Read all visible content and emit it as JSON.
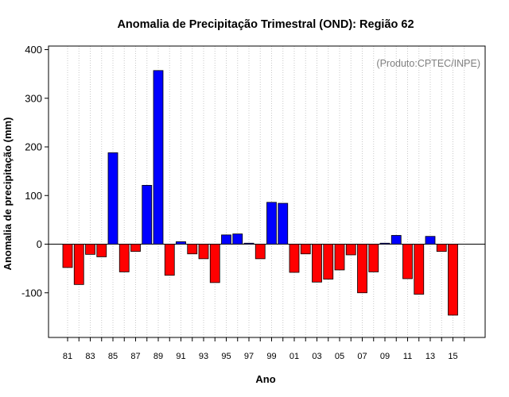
{
  "chart_data": {
    "type": "bar",
    "title": "Anomalia de Precipitação Trimestral (OND): Região 62",
    "xlabel": "Ano",
    "ylabel": "Anomalia de precipitação (mm)",
    "source_note": "(Produto:CPTEC/INPE)",
    "ylim": [
      -195,
      410
    ],
    "yticks": [
      -100,
      0,
      100,
      200,
      300,
      400
    ],
    "categories": [
      "1981",
      "1982",
      "1983",
      "1984",
      "1985",
      "1986",
      "1987",
      "1988",
      "1989",
      "1990",
      "1991",
      "1992",
      "1993",
      "1994",
      "1995",
      "1996",
      "1997",
      "1998",
      "1999",
      "2000",
      "2001",
      "2002",
      "2003",
      "2004",
      "2005",
      "2006",
      "2007",
      "2008",
      "2009",
      "2010",
      "2011",
      "2012",
      "2013",
      "2014",
      "2015"
    ],
    "tick_labels": [
      "81",
      "83",
      "85",
      "87",
      "89",
      "91",
      "93",
      "95",
      "97",
      "99",
      "01",
      "03",
      "05",
      "07",
      "09",
      "11",
      "13",
      "15"
    ],
    "values": [
      -48,
      -83,
      -21,
      -26,
      188,
      -57,
      -15,
      121,
      357,
      -64,
      5,
      -20,
      -30,
      -79,
      19,
      21,
      2,
      -30,
      86,
      84,
      -58,
      -20,
      -78,
      -72,
      -53,
      -22,
      -100,
      -57,
      2,
      18,
      -71,
      -103,
      16,
      -15,
      -146
    ],
    "colors": {
      "positive": "#0000ff",
      "negative": "#ff0000",
      "grid": "#c8c8c8",
      "axis": "#000000"
    }
  }
}
